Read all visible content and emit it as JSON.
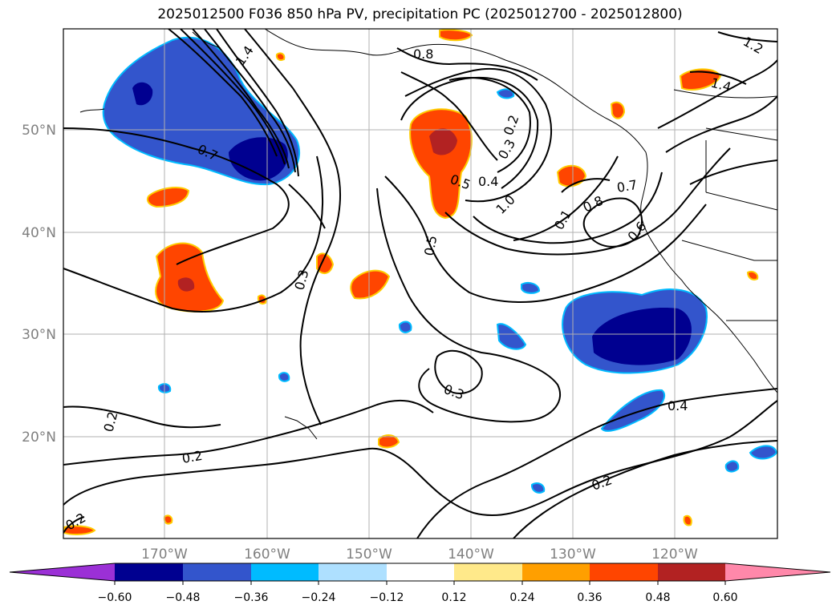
{
  "title": "2025012500 F036 850 hPa PV, precipitation PC (2025012700 - 2025012800)",
  "map": {
    "lon_labels": [
      "170°W",
      "160°W",
      "150°W",
      "140°W",
      "130°W",
      "120°W"
    ],
    "lat_labels": [
      "50°N",
      "40°N",
      "30°N",
      "20°N"
    ],
    "contour_labels": [
      "0.8",
      "1.4",
      "1.2",
      "0.7",
      "0.2",
      "0.3",
      "0.5",
      "0.4",
      "1.0",
      "0.1",
      "0.8",
      "0.7",
      "0.6",
      "0.5",
      "1.4",
      "0.3",
      "0.3",
      "0.4",
      "0.2",
      "0.2",
      "0.2",
      "0.2"
    ]
  },
  "colorbar": {
    "tick_labels": [
      "−0.60",
      "−0.48",
      "−0.36",
      "−0.24",
      "−0.12",
      "0.12",
      "0.24",
      "0.36",
      "0.48",
      "0.60"
    ],
    "colors": [
      "#9b30d6",
      "#000090",
      "#3355cc",
      "#00bbff",
      "#aee0ff",
      "#ffffff",
      "#ffe98a",
      "#ff9f00",
      "#ff4500",
      "#b22222",
      "#ff88aa"
    ]
  }
}
